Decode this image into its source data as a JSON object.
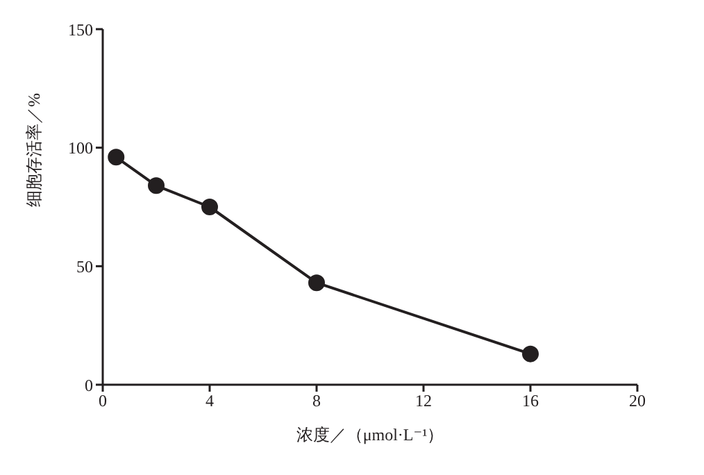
{
  "chart_data": {
    "type": "line",
    "xlabel": "浓度／（μmol·L⁻¹）",
    "ylabel": "细胞存活率／%",
    "x": [
      0.5,
      2,
      4,
      8,
      16
    ],
    "series": [
      {
        "color": "#231f20",
        "values": [
          96,
          84,
          75,
          43,
          13
        ]
      }
    ],
    "xlim": [
      0,
      20
    ],
    "xticks": [
      0,
      4,
      8,
      12,
      16,
      20
    ],
    "ylim": [
      0,
      150
    ],
    "yticks": [
      0,
      50,
      100,
      150
    ],
    "grid": false,
    "legend": false,
    "marker": "circle",
    "line_style": "solid"
  }
}
